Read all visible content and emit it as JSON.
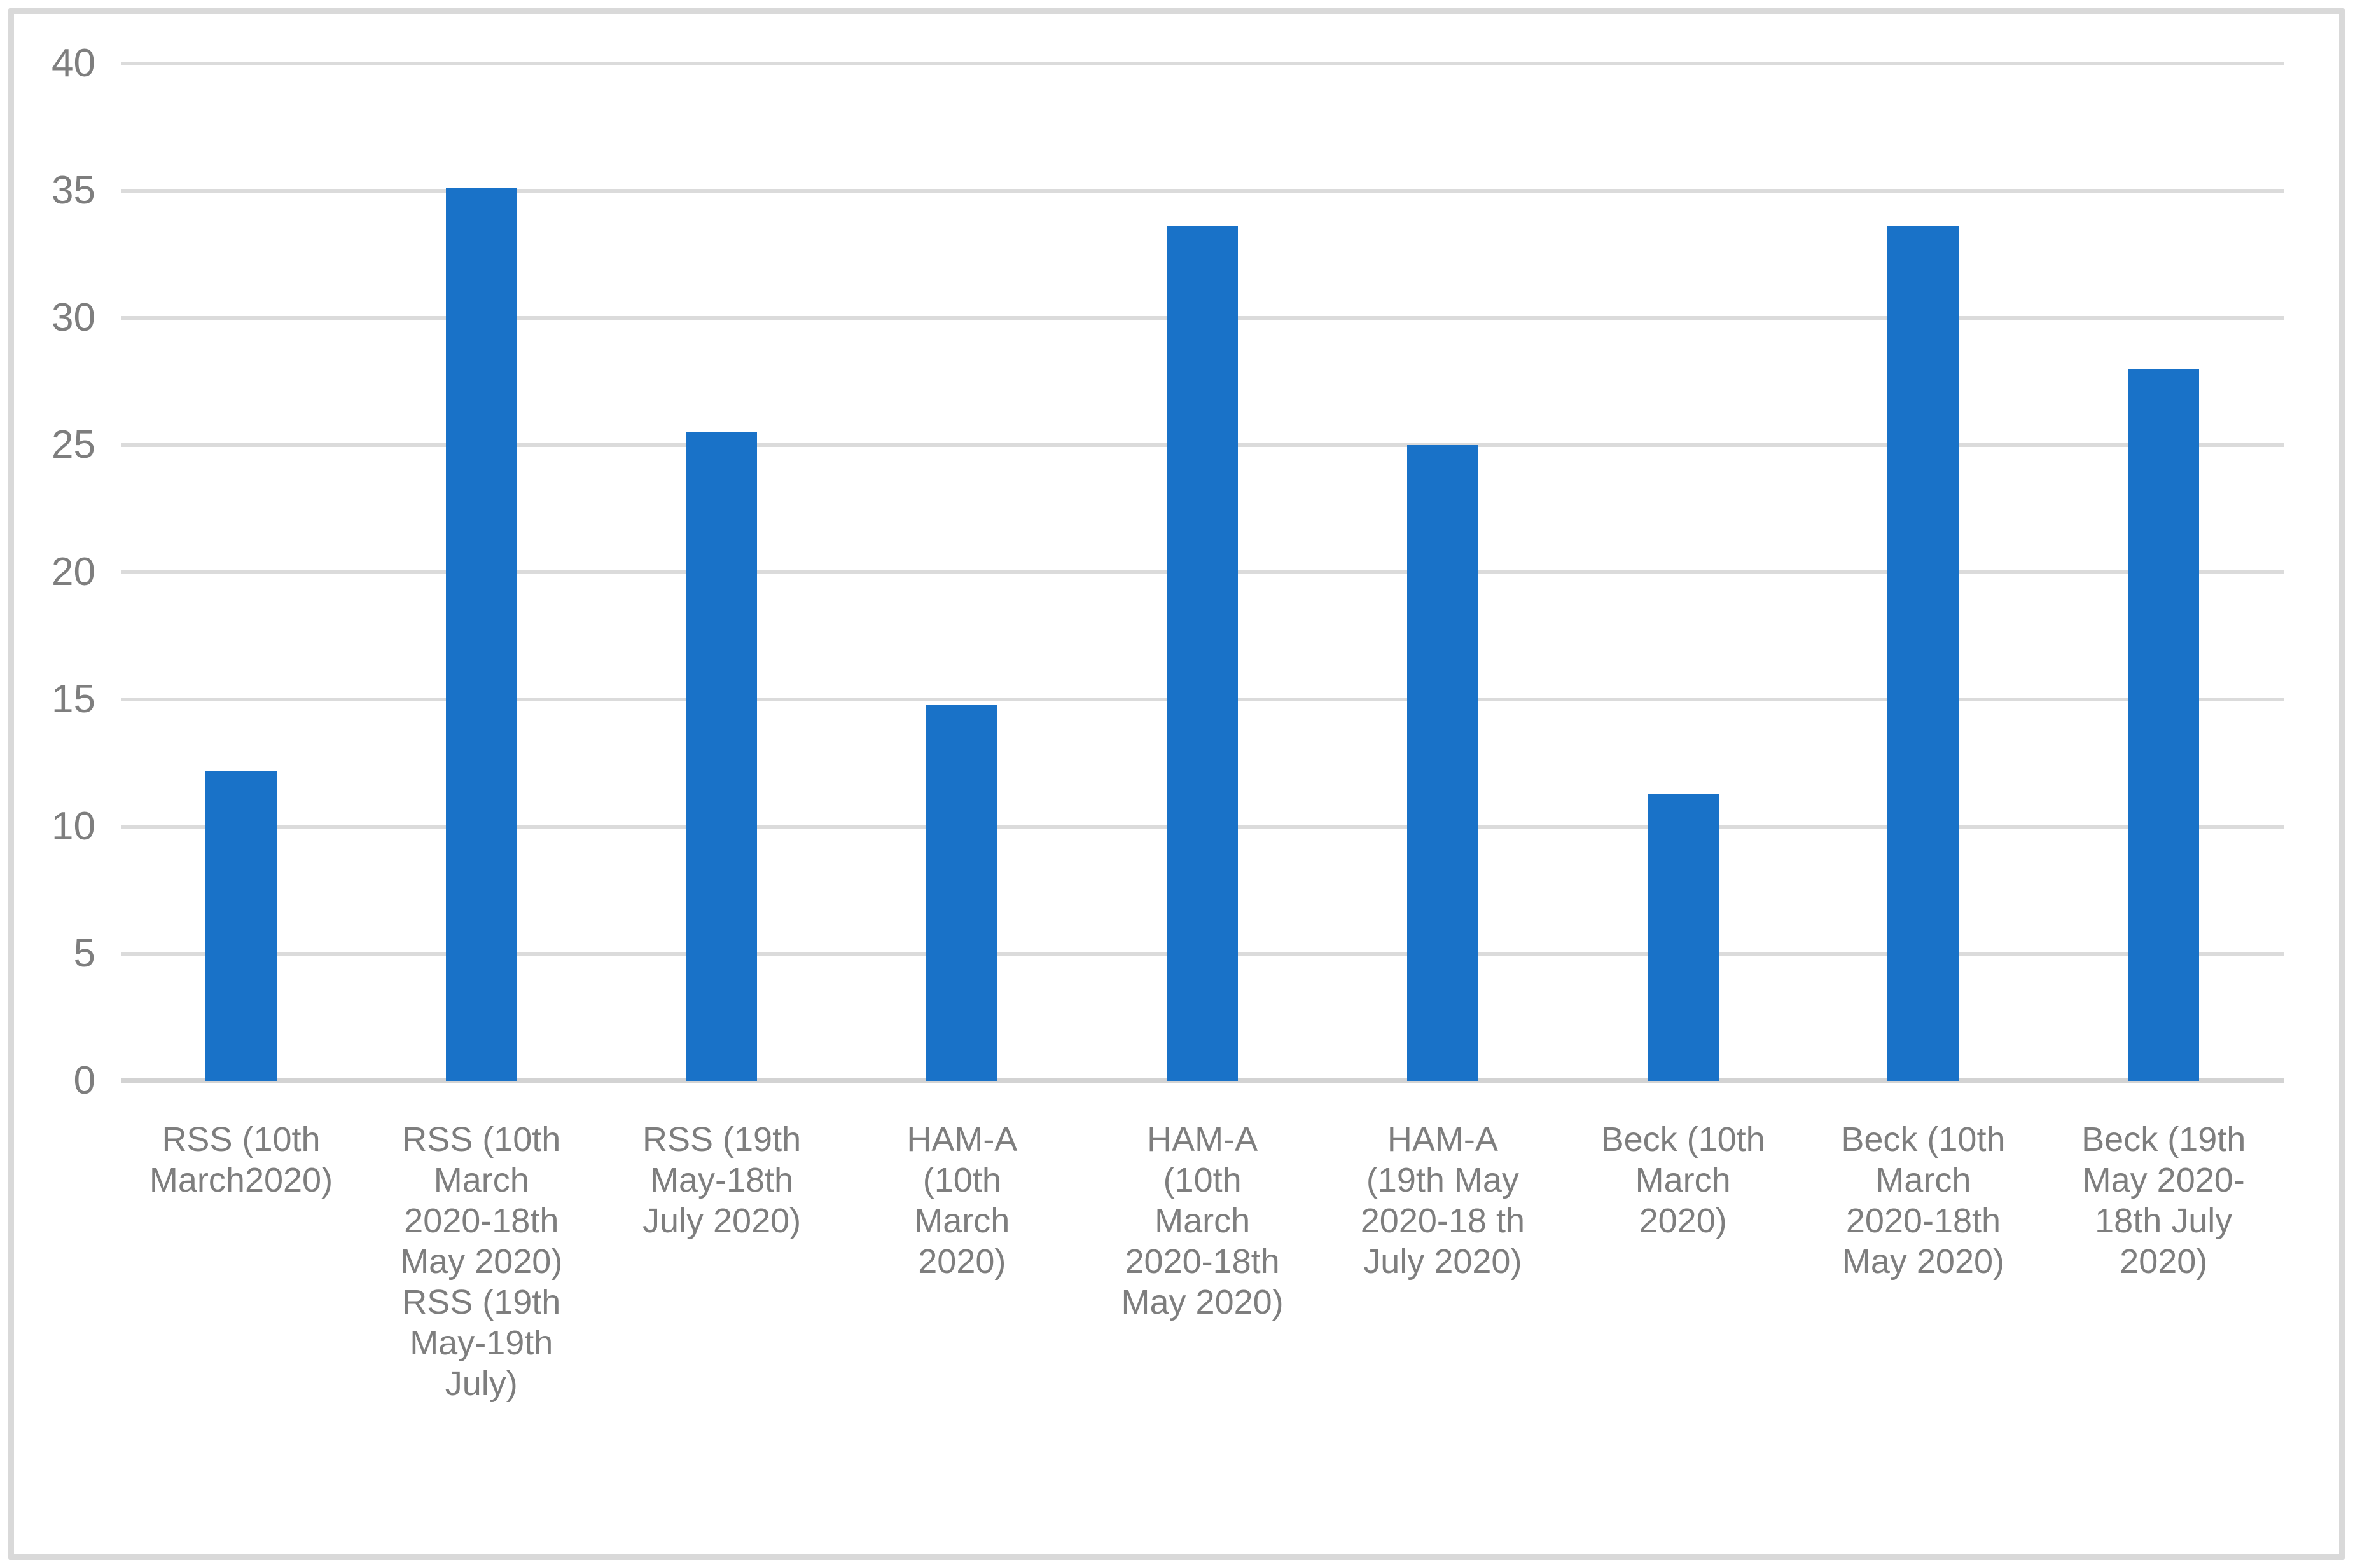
{
  "chart_data": {
    "type": "bar",
    "title": "",
    "xlabel": "",
    "ylabel": "",
    "ylim": [
      0,
      40
    ],
    "yticks": [
      0,
      5,
      10,
      15,
      20,
      25,
      30,
      35,
      40
    ],
    "grid": true,
    "legend": false,
    "categories_lines": [
      [
        "RSS (10th",
        "March2020)"
      ],
      [
        "RSS (10th",
        "March",
        "2020-18th",
        "May 2020)",
        "RSS (19th",
        "May-19th",
        "July)"
      ],
      [
        "RSS (19th",
        "May-18th",
        "July 2020)"
      ],
      [
        "HAM-A",
        "(10th",
        "March",
        "2020)"
      ],
      [
        "HAM-A",
        "(10th",
        "March",
        "2020-18th",
        "May 2020)"
      ],
      [
        "HAM-A",
        "(19th May",
        "2020-18 th",
        "July 2020)"
      ],
      [
        "Beck (10th",
        "March",
        "2020)"
      ],
      [
        "Beck (10th",
        "March",
        "2020-18th",
        "May 2020)"
      ],
      [
        "Beck (19th",
        "May 2020-",
        "18th July",
        "2020)"
      ]
    ],
    "categories": [
      "RSS (10th March2020)",
      "RSS (10th March 2020-18th May 2020) RSS (19th May-19th July)",
      "RSS (19th May-18th July 2020)",
      "HAM-A (10th March 2020)",
      "HAM-A (10th March 2020-18th May 2020)",
      "HAM-A (19th May 2020-18 th July 2020)",
      "Beck (10th March 2020)",
      "Beck (10th March 2020-18th May 2020)",
      "Beck (19th May 2020-18th July 2020)"
    ],
    "values": [
      12.2,
      35.1,
      25.5,
      14.8,
      33.6,
      25,
      11.3,
      33.6,
      28
    ],
    "colors": {
      "bar": "#1972C8",
      "gridline": "#DBDBDB",
      "axis_line": "#D3D3D3",
      "text": "#7E7E7E",
      "frame_border": "#D9D9D9",
      "background": "#FFFFFF"
    }
  }
}
